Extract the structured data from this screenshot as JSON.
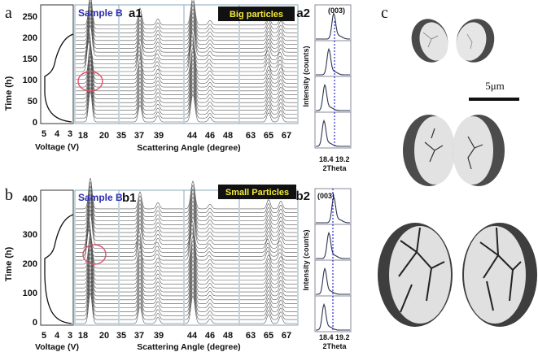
{
  "panel_a": {
    "panel_letter": "a",
    "sample_label": "Sample B",
    "sub_label_1": "a1",
    "sub_label_2": "a2",
    "banner": "Big particles",
    "yaxis_label": "Time (h)",
    "yticks": [
      "0",
      "50",
      "100",
      "150",
      "200",
      "250"
    ],
    "voltage_label": "Voltage (V)",
    "voltage_ticks": [
      "5",
      "4",
      "3"
    ],
    "angle_label": "Scattering Angle (degree)",
    "angle_ticks": [
      "18",
      "20",
      "35",
      "37",
      "39",
      "44",
      "46",
      "48",
      "63",
      "65",
      "67"
    ],
    "inset_peak_label": "(003)",
    "inset_ylabel": "Intensity (counts)",
    "inset_xticks": [
      "18.4",
      "19.2"
    ],
    "inset_xlabel": "2Theta"
  },
  "panel_b": {
    "panel_letter": "b",
    "sample_label": "Sample B",
    "sub_label_1": "b1",
    "sub_label_2": "b2",
    "banner": "Small Particles",
    "yaxis_label": "Time (h)",
    "yticks": [
      "0",
      "100",
      "200",
      "300",
      "400"
    ],
    "voltage_label": "Voltage (V)",
    "voltage_ticks": [
      "5",
      "4",
      "3"
    ],
    "angle_label": "Scattering Angle (degree)",
    "angle_ticks": [
      "18",
      "20",
      "35",
      "37",
      "39",
      "44",
      "46",
      "48",
      "63",
      "65",
      "67"
    ],
    "inset_peak_label": "(003)",
    "inset_ylabel": "Intensity (counts)",
    "inset_xticks": [
      "18.4",
      "19.2"
    ],
    "inset_xlabel": "2Theta"
  },
  "panel_c": {
    "panel_letter": "c",
    "scale_label": "5μm"
  },
  "colors": {
    "sample_label": "#2b2bb0",
    "banner_bg": "#111111",
    "banner_text": "#f2ea3a",
    "marker_circle": "#e0506a",
    "dashed_line": "#2a2ad0",
    "inset_curve": "#2b3550"
  }
}
